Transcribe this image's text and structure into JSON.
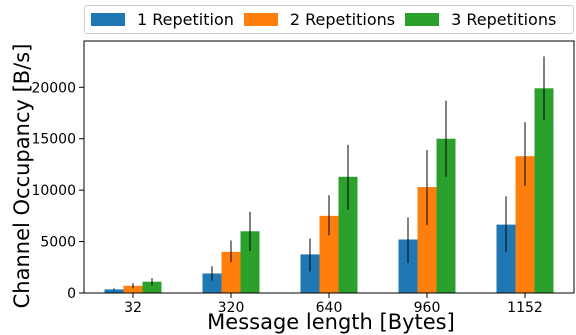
{
  "chart_data": {
    "type": "bar",
    "xlabel": "Message length [Bytes]",
    "ylabel": "Channel Occupancy [B/s]",
    "categories": [
      "32",
      "320",
      "640",
      "960",
      "1152"
    ],
    "ylim": [
      0,
      24500
    ],
    "yticks": [
      0,
      5000,
      10000,
      15000,
      20000
    ],
    "legend_position": "top",
    "grid": false,
    "series": [
      {
        "name": "1 Repetition",
        "color": "#1f77b4",
        "values": [
          350,
          1900,
          3750,
          5200,
          6650
        ],
        "err_low": [
          250,
          1200,
          2100,
          2900,
          4000
        ],
        "err_high": [
          450,
          2600,
          5300,
          7350,
          9400
        ]
      },
      {
        "name": "2 Repetitions",
        "color": "#ff7f0e",
        "values": [
          700,
          4000,
          7500,
          10300,
          13300
        ],
        "err_low": [
          450,
          3000,
          5600,
          6600,
          10400
        ],
        "err_high": [
          950,
          5100,
          9500,
          13900,
          16600
        ]
      },
      {
        "name": "3 Repetitions",
        "color": "#2ca02c",
        "values": [
          1100,
          6000,
          11300,
          15000,
          19900
        ],
        "err_low": [
          750,
          4100,
          8100,
          11300,
          16800
        ],
        "err_high": [
          1450,
          7900,
          14400,
          18700,
          23000
        ]
      }
    ]
  }
}
